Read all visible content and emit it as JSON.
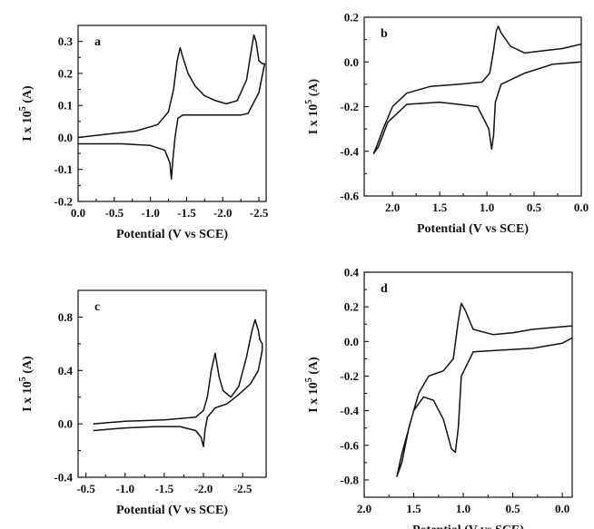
{
  "chart_data": [
    {
      "panel": "a",
      "type": "line",
      "xlabel": "Potential (V vs SCE)",
      "ylabel": "I x 10^5 (A)",
      "xlim": [
        0.0,
        -2.6
      ],
      "ylim": [
        -0.2,
        0.35
      ],
      "xticks": [
        0.0,
        -0.5,
        -1.0,
        -1.5,
        -2.0,
        -2.5
      ],
      "xtick_labels": [
        "0.0",
        "-0.5",
        "-1.0",
        "-1.5",
        "-2.0",
        "-2.5"
      ],
      "yticks": [
        -0.2,
        -0.1,
        0.0,
        0.1,
        0.2,
        0.3
      ],
      "ytick_labels": [
        "-0.2",
        "-0.1",
        "0.0",
        "0.1",
        "0.2",
        "0.3"
      ],
      "series": [
        {
          "x": [
            0.0,
            -0.4,
            -0.8,
            -1.1,
            -1.25,
            -1.32,
            -1.37,
            -1.41,
            -1.45,
            -1.52,
            -1.62,
            -1.75,
            -1.9,
            -2.05,
            -2.2,
            -2.33,
            -2.4,
            -2.43,
            -2.46,
            -2.5,
            -2.55,
            -2.58,
            -2.5,
            -2.35,
            -2.25,
            -2.0,
            -1.7,
            -1.45,
            -1.38,
            -1.34,
            -1.31,
            -1.29,
            -1.27,
            -1.2,
            -1.0,
            -0.6,
            -0.2,
            0.0
          ],
          "y": [
            0.0,
            0.01,
            0.02,
            0.04,
            0.08,
            0.15,
            0.24,
            0.28,
            0.25,
            0.2,
            0.16,
            0.13,
            0.115,
            0.105,
            0.115,
            0.18,
            0.28,
            0.32,
            0.3,
            0.24,
            0.23,
            0.23,
            0.14,
            0.075,
            0.07,
            0.07,
            0.07,
            0.07,
            0.06,
            0.0,
            -0.07,
            -0.13,
            -0.08,
            -0.04,
            -0.025,
            -0.02,
            -0.02,
            -0.02
          ]
        }
      ]
    },
    {
      "panel": "b",
      "type": "line",
      "xlabel": "Potential (V vs SCE)",
      "ylabel": "I x 10^5 (A)",
      "xlim": [
        2.3,
        0.0
      ],
      "ylim": [
        -0.6,
        0.2
      ],
      "xticks": [
        2.0,
        1.5,
        1.0,
        0.5,
        0.0
      ],
      "xtick_labels": [
        "2.0",
        "1.5",
        "1.0",
        "0.5",
        "0.0"
      ],
      "yticks": [
        -0.6,
        -0.4,
        -0.2,
        0.0,
        0.2
      ],
      "ytick_labels": [
        "-0.6",
        "-0.4",
        "-0.2",
        "0.0",
        "0.2"
      ],
      "series": [
        {
          "x": [
            0.0,
            0.2,
            0.4,
            0.6,
            0.75,
            0.85,
            0.88,
            0.9,
            0.93,
            0.97,
            1.05,
            1.3,
            1.6,
            1.85,
            2.0,
            2.1,
            2.17,
            2.2,
            2.15,
            2.05,
            1.85,
            1.5,
            1.1,
            0.98,
            0.95,
            0.93,
            0.91,
            0.85,
            0.6,
            0.3,
            0.0
          ],
          "y": [
            0.08,
            0.06,
            0.05,
            0.04,
            0.07,
            0.13,
            0.16,
            0.14,
            0.05,
            -0.05,
            -0.09,
            -0.1,
            -0.11,
            -0.14,
            -0.2,
            -0.3,
            -0.38,
            -0.41,
            -0.38,
            -0.27,
            -0.19,
            -0.18,
            -0.2,
            -0.3,
            -0.39,
            -0.33,
            -0.18,
            -0.1,
            -0.05,
            -0.01,
            0.0
          ]
        }
      ]
    },
    {
      "panel": "c",
      "type": "line",
      "xlabel": "Potential (V vs SCE)",
      "ylabel": "I x 10^5 (A)",
      "xlim": [
        -0.4,
        -2.8
      ],
      "ylim": [
        -0.4,
        1.0
      ],
      "xticks": [
        -0.5,
        -1.0,
        -1.5,
        -2.0,
        -2.5
      ],
      "xtick_labels": [
        "-0.5",
        "-1.0",
        "-1.5",
        "-2.0",
        "-2.5"
      ],
      "yticks": [
        -0.4,
        0.0,
        0.4,
        0.8
      ],
      "ytick_labels": [
        "-0.4",
        "0.0",
        "0.4",
        "0.8"
      ],
      "series": [
        {
          "x": [
            -0.6,
            -1.0,
            -1.5,
            -1.9,
            -2.0,
            -2.05,
            -2.1,
            -2.15,
            -2.2,
            -2.25,
            -2.35,
            -2.45,
            -2.55,
            -2.62,
            -2.66,
            -2.7,
            -2.72,
            -2.75,
            -2.75,
            -2.7,
            -2.6,
            -2.45,
            -2.3,
            -2.15,
            -2.05,
            -2.02,
            -2.0,
            -1.97,
            -1.9,
            -1.7,
            -1.4,
            -1.0,
            -0.6
          ],
          "y": [
            0.0,
            0.02,
            0.03,
            0.05,
            0.1,
            0.2,
            0.4,
            0.53,
            0.35,
            0.25,
            0.2,
            0.28,
            0.5,
            0.7,
            0.78,
            0.7,
            0.63,
            0.6,
            0.55,
            0.4,
            0.3,
            0.22,
            0.15,
            0.12,
            0.05,
            -0.05,
            -0.17,
            -0.1,
            -0.05,
            -0.02,
            -0.02,
            -0.03,
            -0.05
          ]
        }
      ]
    },
    {
      "panel": "d",
      "type": "line",
      "xlabel": "Potential (V vs SCE)",
      "ylabel": "I x 10^5 (A)",
      "xlim": [
        2.0,
        -0.1
      ],
      "ylim": [
        -0.9,
        0.4
      ],
      "xticks": [
        2.0,
        1.5,
        1.0,
        0.5,
        0.0
      ],
      "xtick_labels": [
        "2.0",
        "1.5",
        "1.0",
        "0.5",
        "0.0"
      ],
      "yticks": [
        -0.8,
        -0.6,
        -0.4,
        -0.2,
        0.0,
        0.2,
        0.4
      ],
      "ytick_labels": [
        "-0.8",
        "-0.6",
        "-0.4",
        "-0.2",
        "0.0",
        "0.2",
        "0.4"
      ],
      "series": [
        {
          "x": [
            -0.1,
            0.1,
            0.3,
            0.5,
            0.7,
            0.9,
            0.98,
            1.02,
            1.05,
            1.1,
            1.2,
            1.35,
            1.45,
            1.55,
            1.62,
            1.67,
            1.62,
            1.5,
            1.4,
            1.3,
            1.2,
            1.12,
            1.08,
            1.05,
            1.02,
            0.9,
            0.6,
            0.3,
            0.0,
            -0.1
          ],
          "y": [
            0.09,
            0.08,
            0.07,
            0.05,
            0.04,
            0.07,
            0.18,
            0.22,
            0.12,
            -0.1,
            -0.17,
            -0.2,
            -0.3,
            -0.5,
            -0.7,
            -0.78,
            -0.65,
            -0.4,
            -0.32,
            -0.34,
            -0.45,
            -0.62,
            -0.64,
            -0.5,
            -0.2,
            -0.06,
            -0.05,
            -0.04,
            -0.01,
            0.02
          ]
        }
      ]
    }
  ]
}
